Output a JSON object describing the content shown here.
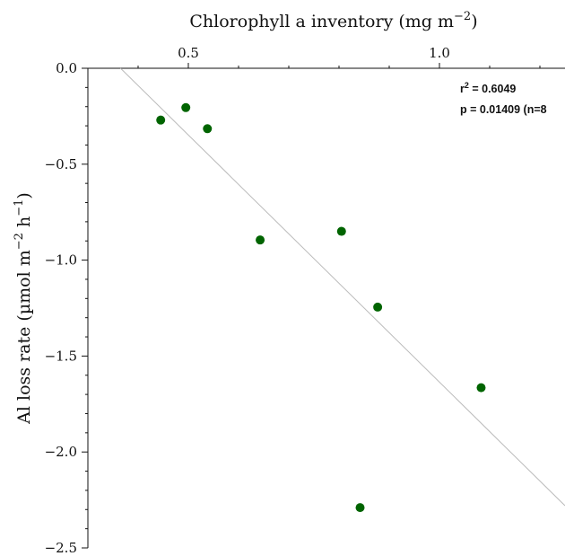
{
  "chart_data": {
    "type": "scatter",
    "title": "",
    "xlabel": "Chlorophyll a inventory (mg m−2)",
    "xlabel_parts": {
      "base": "Chlorophyll a inventory (mg m",
      "sup": "−2",
      "tail": ")"
    },
    "ylabel": "Al loss rate (µmol m−2 h−1)",
    "ylabel_parts": {
      "base": "Al loss rate (µmol m",
      "sup1": "−2",
      "mid": " h",
      "sup2": "−1",
      "tail": ")"
    },
    "x_axis_position": "top",
    "xlim": [
      0.3,
      1.25
    ],
    "ylim": [
      -2.5,
      0.0
    ],
    "x_ticks": [
      0.5,
      1.0
    ],
    "x_tick_labels": [
      "0.5",
      "1.0"
    ],
    "x_minor_ticks": [
      0.4,
      0.6,
      0.7,
      0.8,
      0.9,
      1.1,
      1.2
    ],
    "y_ticks": [
      0.0,
      -0.5,
      -1.0,
      -1.5,
      -2.0,
      -2.5
    ],
    "y_tick_labels": [
      "0.0",
      "−0.5",
      "−1.0",
      "−1.5",
      "−2.0",
      "−2.5"
    ],
    "y_minor_ticks": [
      -0.1,
      -0.2,
      -0.3,
      -0.4,
      -0.6,
      -0.7,
      -0.8,
      -0.9,
      -1.1,
      -1.2,
      -1.3,
      -1.4,
      -1.6,
      -1.7,
      -1.8,
      -1.9,
      -2.1,
      -2.2,
      -2.3,
      -2.4
    ],
    "grid": false,
    "marker_color": "#006400",
    "fit_line_color": "#bbbbbb",
    "points": [
      {
        "x": 0.445,
        "y": -0.27
      },
      {
        "x": 0.495,
        "y": -0.205
      },
      {
        "x": 0.538,
        "y": -0.315
      },
      {
        "x": 0.643,
        "y": -0.895
      },
      {
        "x": 0.805,
        "y": -0.85
      },
      {
        "x": 0.877,
        "y": -1.245
      },
      {
        "x": 1.083,
        "y": -1.665
      },
      {
        "x": 0.842,
        "y": -2.29
      }
    ],
    "fit_line": {
      "x": [
        0.365,
        1.25
      ],
      "y": [
        0.0,
        -2.28
      ]
    },
    "annotations": {
      "r2_base": "r",
      "r2_sup": "2",
      "r2_value": " = 0.6049",
      "p_text": "p = 0.01409 (n=8"
    }
  }
}
